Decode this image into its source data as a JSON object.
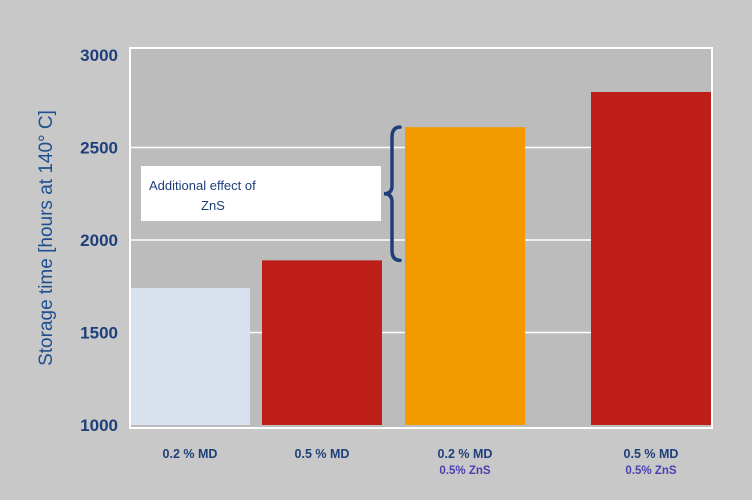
{
  "chart_data": {
    "type": "bar",
    "title": "",
    "ylabel": "Storage time [hours at 140° C]",
    "xlabel": "",
    "ylim": [
      1000,
      3000
    ],
    "yticks": [
      1000,
      1500,
      2000,
      2500,
      3000
    ],
    "grid": true,
    "categories": [
      {
        "line1": "0.2 % MD",
        "line2": ""
      },
      {
        "line1": "0.5  % MD",
        "line2": ""
      },
      {
        "line1": "0.2 % MD",
        "line2": "0.5% ZnS"
      },
      {
        "line1": "0.5 % MD",
        "line2": "0.5% ZnS"
      }
    ],
    "values": [
      1740,
      1890,
      2610,
      2800
    ],
    "colors": [
      "#d8e2ee",
      "#be1e18",
      "#f29a00",
      "#be1e18"
    ],
    "annotation": {
      "line1": "Additional effect of",
      "line2": "ZnS",
      "from_value": 1890,
      "to_value": 2610
    }
  }
}
